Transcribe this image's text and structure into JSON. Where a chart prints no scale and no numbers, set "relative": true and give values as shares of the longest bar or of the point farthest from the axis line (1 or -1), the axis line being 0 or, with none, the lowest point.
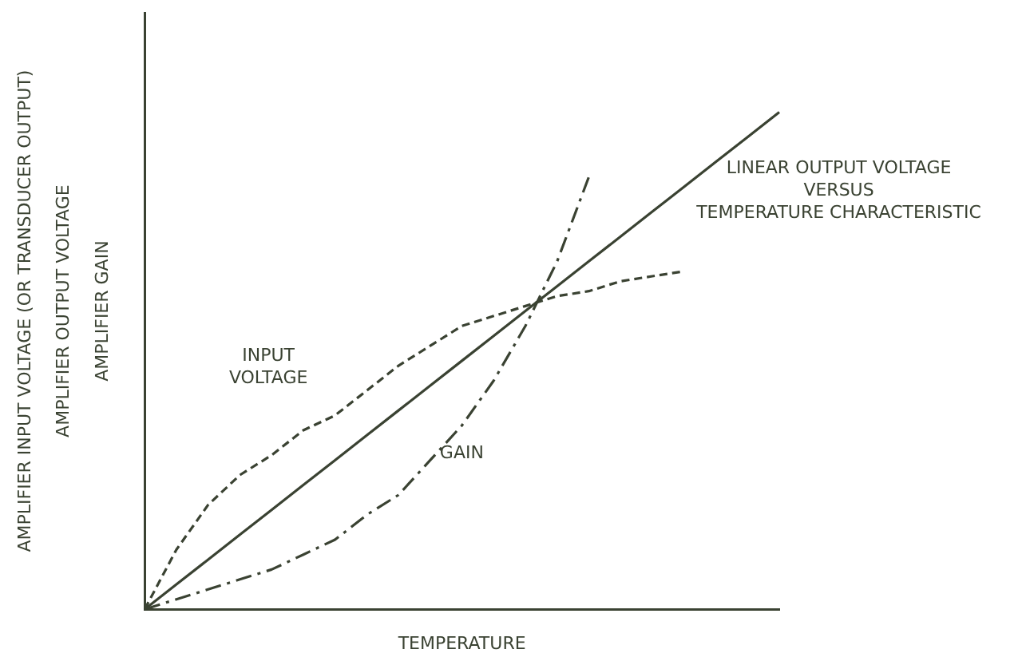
{
  "chart_data": {
    "type": "line",
    "relative": true,
    "xlabel": "TEMPERATURE",
    "ylabel": "AMPLIFIER INPUT VOLTAGE (OR TRANSDUCER OUTPUT)\nAMPLIFIER OUTPUT VOLTAGE\nAMPLIFIER GAIN",
    "categories": [
      null,
      null,
      null,
      null,
      null,
      null,
      null,
      null,
      null,
      null,
      null,
      null,
      null,
      null,
      null,
      null,
      null,
      null,
      null,
      null,
      null
    ],
    "grid": false,
    "legend": false,
    "marker": "none",
    "series": [
      {
        "name": "INPUT\nVOLTAGE",
        "color": "#3a4232",
        "line_style": "dashed",
        "values": [
          0,
          0.12,
          0.21,
          0.27,
          0.31,
          0.36,
          0.39,
          0.44,
          0.49,
          0.53,
          0.57,
          0.59,
          0.61,
          0.63,
          0.64,
          0.66,
          0.67,
          0.68,
          null,
          null,
          null
        ]
      },
      {
        "name": "LINEAR OUTPUT VOLTAGE\nVERSUS\nTEMPERATURE CHARACTERISTIC",
        "color": "#3a4232",
        "line_style": "solid",
        "values": [
          0,
          0.05,
          0.1,
          0.15,
          0.2,
          0.25,
          0.3,
          0.35,
          0.4,
          0.45,
          0.5,
          0.55,
          0.6,
          0.65,
          0.7,
          0.75,
          0.8,
          0.85,
          0.9,
          0.95,
          1
        ]
      },
      {
        "name": "GAIN",
        "color": "#3a4232",
        "line_style": "dashdot",
        "values": [
          0,
          0.02,
          0.04,
          0.06,
          0.08,
          0.11,
          0.14,
          0.19,
          0.23,
          0.3,
          0.37,
          0.46,
          0.57,
          0.7,
          0.87,
          null,
          null,
          null,
          null,
          null,
          null
        ]
      }
    ]
  }
}
